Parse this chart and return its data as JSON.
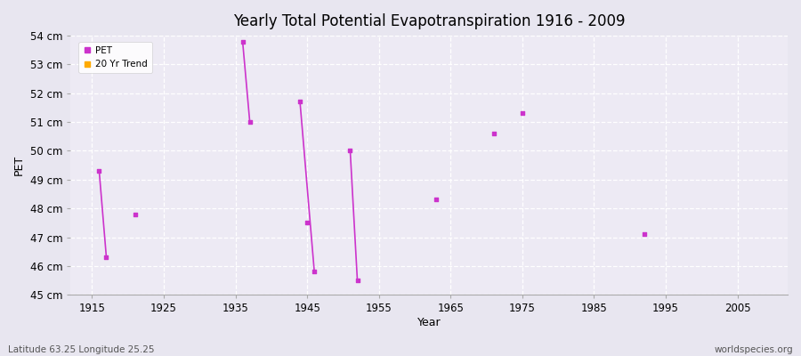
{
  "title": "Yearly Total Potential Evapotranspiration 1916 - 2009",
  "xlabel": "Year",
  "ylabel": "PET",
  "subtitle_left": "Latitude 63.25 Longitude 25.25",
  "subtitle_right": "worldspecies.org",
  "ylim": [
    45,
    54
  ],
  "xlim": [
    1912,
    2012
  ],
  "ytick_labels": [
    "45 cm",
    "46 cm",
    "47 cm",
    "48 cm",
    "49 cm",
    "50 cm",
    "51 cm",
    "52 cm",
    "53 cm",
    "54 cm"
  ],
  "ytick_values": [
    45,
    46,
    47,
    48,
    49,
    50,
    51,
    52,
    53,
    54
  ],
  "xtick_values": [
    1915,
    1925,
    1935,
    1945,
    1955,
    1965,
    1975,
    1985,
    1995,
    2005
  ],
  "bg_color": "#e8e6f0",
  "plot_bg_color": "#edeaf4",
  "grid_color": "#ffffff",
  "pet_color": "#cc33cc",
  "trend_color": "#ffaa00",
  "pet_data": [
    [
      1916,
      49.3
    ],
    [
      1917,
      46.3
    ],
    [
      1921,
      47.8
    ],
    [
      1936,
      53.8
    ],
    [
      1937,
      51.0
    ],
    [
      1944,
      51.7
    ],
    [
      1945,
      47.5
    ],
    [
      1946,
      45.8
    ],
    [
      1951,
      50.0
    ],
    [
      1952,
      45.5
    ],
    [
      1963,
      48.3
    ],
    [
      1971,
      50.6
    ],
    [
      1975,
      51.3
    ],
    [
      1992,
      47.1
    ]
  ],
  "trend_segments": [
    [
      [
        1916,
        49.3
      ],
      [
        1917,
        46.3
      ]
    ],
    [
      [
        1936,
        53.8
      ],
      [
        1937,
        51.0
      ]
    ],
    [
      [
        1944,
        51.7
      ],
      [
        1946,
        45.8
      ]
    ],
    [
      [
        1951,
        50.0
      ],
      [
        1952,
        45.5
      ]
    ]
  ],
  "legend_pet_label": "PET",
  "legend_trend_label": "20 Yr Trend"
}
